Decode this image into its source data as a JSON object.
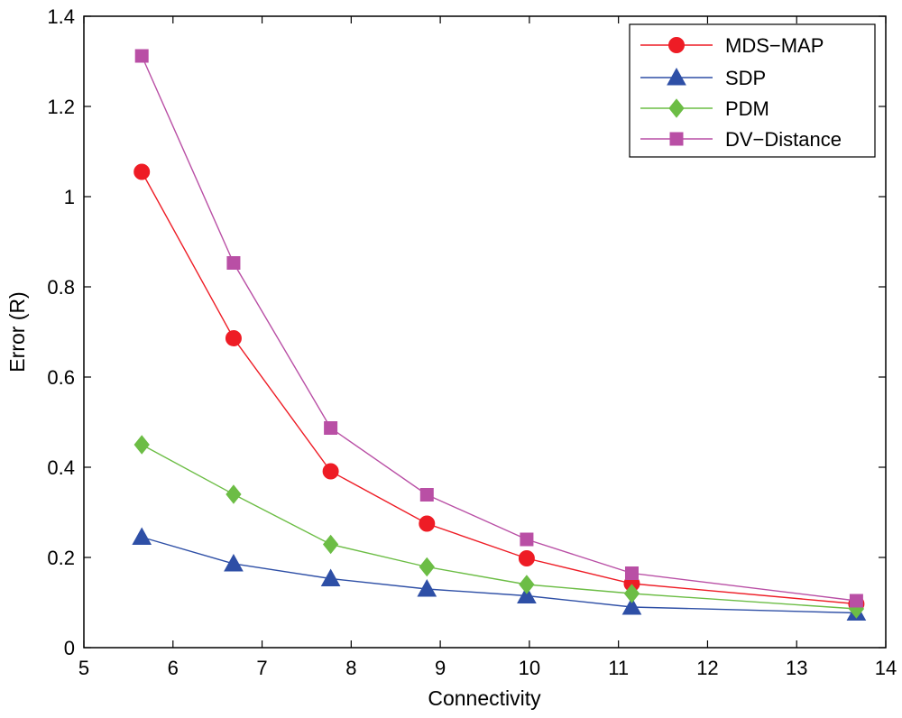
{
  "chart_data": {
    "type": "line",
    "title": "",
    "xlabel": "Connectivity",
    "ylabel": "Error (R)",
    "xlim": [
      5,
      14
    ],
    "ylim": [
      0,
      1.4
    ],
    "xticks": [
      5,
      6,
      7,
      8,
      9,
      10,
      11,
      12,
      13,
      14
    ],
    "yticks": [
      0,
      0.2,
      0.4,
      0.6,
      0.8,
      1,
      1.2,
      1.4
    ],
    "xtick_labels": [
      "5",
      "6",
      "7",
      "8",
      "9",
      "10",
      "11",
      "12",
      "13",
      "14"
    ],
    "ytick_labels": [
      "0",
      "0.2",
      "0.4",
      "0.6",
      "0.8",
      "1",
      "1.2",
      "1.4"
    ],
    "grid": false,
    "legend_position": "top-right",
    "x": [
      5.65,
      6.68,
      7.77,
      8.85,
      9.97,
      11.15,
      13.67
    ],
    "series": [
      {
        "name": "MDS−MAP",
        "color": "#ee1c25",
        "marker": "circle",
        "values": [
          1.055,
          0.686,
          0.391,
          0.275,
          0.198,
          0.142,
          0.097
        ]
      },
      {
        "name": "SDP",
        "color": "#2e4fa6",
        "marker": "triangle",
        "values": [
          0.245,
          0.186,
          0.153,
          0.13,
          0.115,
          0.09,
          0.077
        ]
      },
      {
        "name": "PDM",
        "color": "#6cbd45",
        "marker": "diamond",
        "values": [
          0.45,
          0.34,
          0.229,
          0.179,
          0.14,
          0.12,
          0.086
        ]
      },
      {
        "name": "DV−Distance",
        "color": "#b94fa5",
        "marker": "square",
        "values": [
          1.312,
          0.853,
          0.487,
          0.339,
          0.24,
          0.165,
          0.104
        ]
      }
    ]
  }
}
